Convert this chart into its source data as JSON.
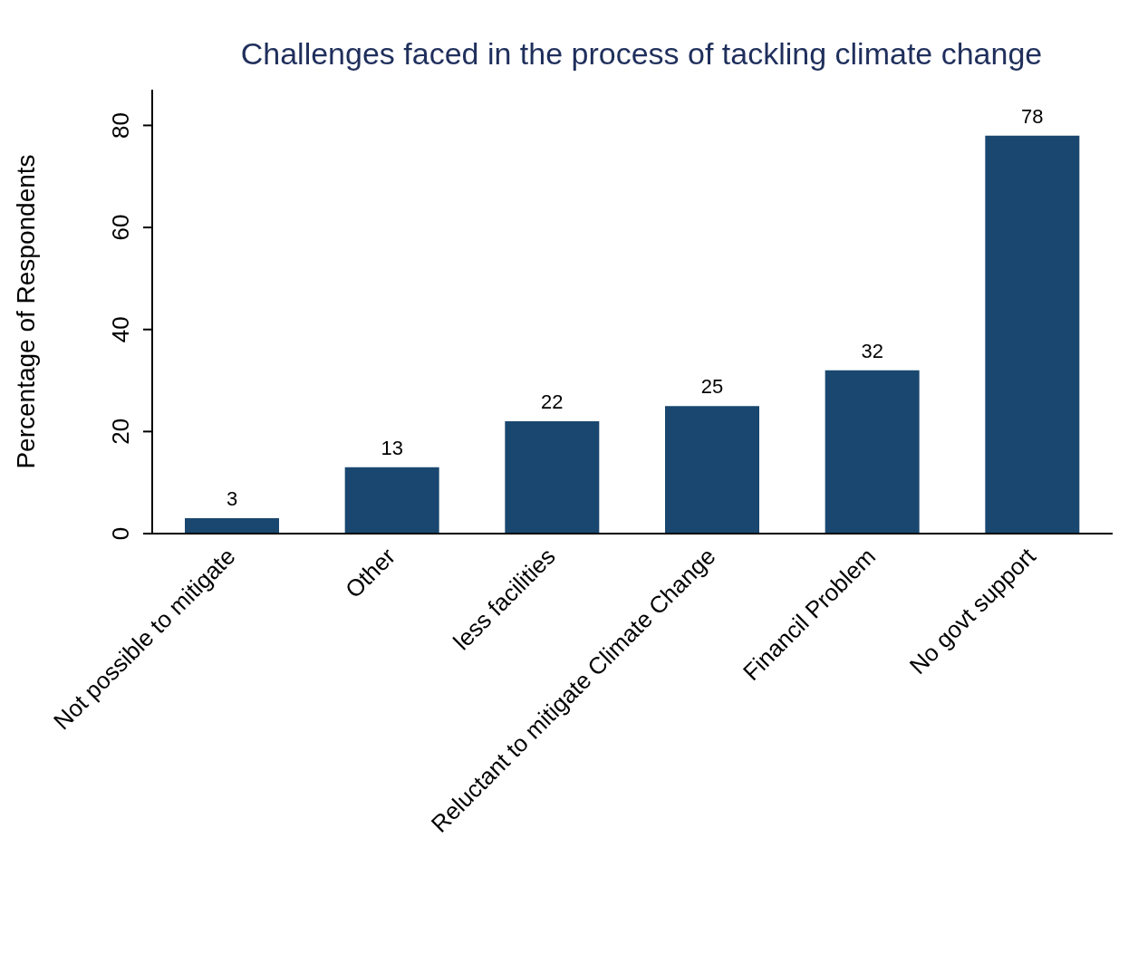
{
  "chart_data": {
    "type": "bar",
    "title": "Challenges faced in the process of tackling climate change",
    "ylabel": "Percentage of Respondents",
    "categories": [
      "Not possible to mitigate",
      "Other",
      "less facilities",
      "Reluctant to mitigate Climate Change",
      "Financil Problem",
      "No govt support"
    ],
    "values": [
      3,
      13,
      22,
      25,
      32,
      78
    ],
    "color": "#1a476f",
    "ylim": [
      0,
      87
    ],
    "yticks": [
      0,
      20,
      40,
      60,
      80
    ],
    "data_labels": true,
    "grid": false,
    "legend": false
  }
}
